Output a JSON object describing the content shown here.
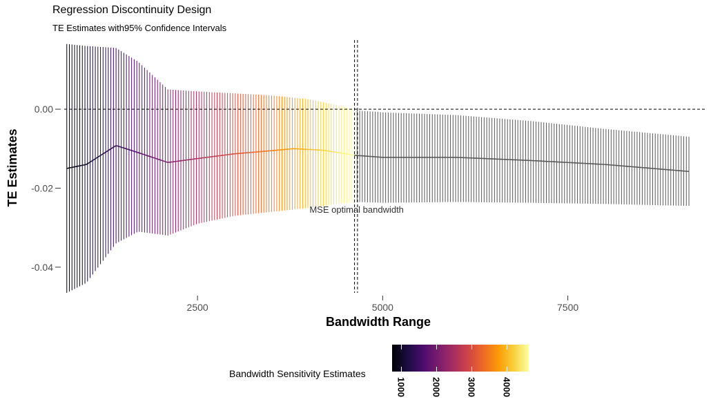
{
  "chart_data": {
    "type": "errorbar-line",
    "title": "Regression Discontinuity Design",
    "subtitle": "TE Estimates with95% Confidence Intervals",
    "xlabel": "Bandwidth Range",
    "ylabel": "TE Estimates",
    "xlim": [
      700,
      9200
    ],
    "ylim": [
      -0.0465,
      0.0175
    ],
    "x_ticks": [
      2500,
      5000,
      7500
    ],
    "x_tick_labels": [
      "2500",
      "5000",
      "7500"
    ],
    "y_ticks": [
      0.0,
      -0.02,
      -0.04
    ],
    "y_tick_labels": [
      "0.00",
      "-0.02",
      "-0.04"
    ],
    "reference_hline": 0.0,
    "reference_vlines": [
      4620,
      4660
    ],
    "annotation": {
      "text": "MSE optimal bandwidth",
      "x": 4900,
      "y": -0.0255
    },
    "grid": false,
    "bandwidth_range": [
      735,
      9150
    ],
    "bandwidth_step": 35,
    "series": [
      {
        "role": "estimate",
        "x": [
          735,
          1000,
          1400,
          1700,
          2100,
          2500,
          3000,
          3500,
          3800,
          4200,
          4640,
          5000,
          6000,
          7000,
          8000,
          9150
        ],
        "y": [
          -0.015,
          -0.014,
          -0.0092,
          -0.011,
          -0.0135,
          -0.0125,
          -0.0113,
          -0.0105,
          -0.01,
          -0.0104,
          -0.0117,
          -0.0122,
          -0.0122,
          -0.013,
          -0.014,
          -0.0158
        ]
      },
      {
        "role": "ci_upper",
        "x": [
          735,
          1000,
          1400,
          1700,
          2100,
          2500,
          3000,
          3500,
          4000,
          4400,
          4640,
          5000,
          6000,
          7000,
          8000,
          9150
        ],
        "y": [
          0.0165,
          0.016,
          0.0155,
          0.012,
          0.005,
          0.0045,
          0.004,
          0.0035,
          0.0025,
          0.001,
          -0.0003,
          -0.0008,
          -0.0015,
          -0.003,
          -0.005,
          -0.007
        ]
      },
      {
        "role": "ci_lower",
        "x": [
          735,
          1000,
          1400,
          1700,
          2100,
          2500,
          3000,
          3500,
          4000,
          4400,
          4640,
          5000,
          6000,
          7000,
          8000,
          9150
        ],
        "y": [
          -0.0465,
          -0.044,
          -0.034,
          -0.031,
          -0.032,
          -0.029,
          -0.027,
          -0.026,
          -0.025,
          -0.024,
          -0.0235,
          -0.0237,
          -0.0235,
          -0.0237,
          -0.024,
          -0.0245
        ]
      }
    ],
    "color_scale": {
      "name": "Bandwidth Sensitivity Estimates",
      "palette": "inferno",
      "domain": [
        735,
        4620
      ],
      "ticks": [
        1000,
        2000,
        3000,
        4000
      ],
      "tick_labels": [
        "1000",
        "2000",
        "3000",
        "4000"
      ],
      "out_of_range_color": "#555555",
      "stops": [
        "#000004",
        "#1b0c41",
        "#4a0c6b",
        "#781c6d",
        "#a52c60",
        "#cf4446",
        "#ed6925",
        "#fb9b06",
        "#f7d13d",
        "#fcffa4"
      ]
    },
    "legend_placement": "bottom"
  }
}
